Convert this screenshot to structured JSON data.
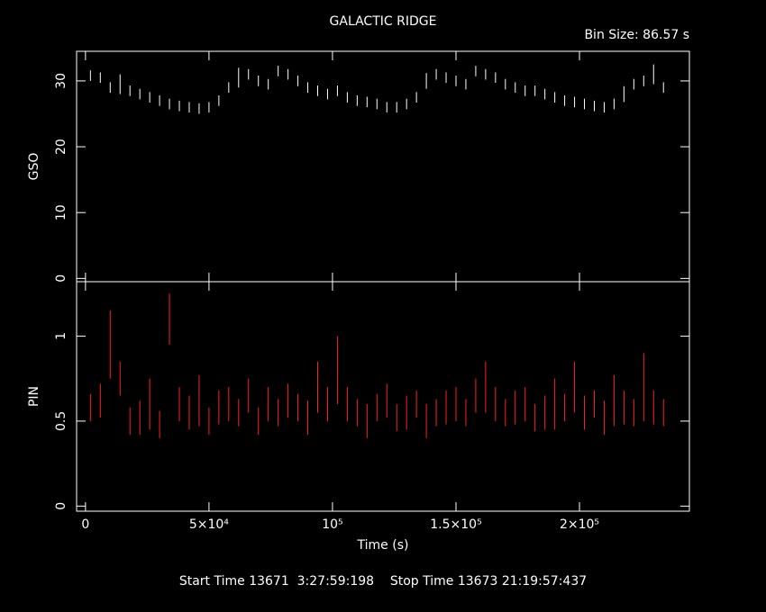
{
  "chart_data": {
    "type": "errorbar",
    "title": "GALACTIC RIDGE",
    "bin_size": "Bin Size: 86.57 s",
    "xlabel": "Time (s)",
    "footer": "Start Time 13671  3:27:59:198    Stop Time 13673 21:19:57:437",
    "xlim": [
      -3600,
      244500
    ],
    "xticks": [
      0,
      {
        "value": 50000,
        "label": "5×10⁴"
      },
      {
        "value": 100000,
        "label": "10⁵"
      },
      {
        "value": 150000,
        "label": "1.5×10⁵"
      },
      {
        "value": 200000,
        "label": "2×10⁵"
      }
    ],
    "x": [
      2000,
      6000,
      10000,
      14000,
      18000,
      22000,
      26000,
      30000,
      34000,
      38000,
      42000,
      46000,
      50000,
      54000,
      58000,
      62000,
      66000,
      70000,
      74000,
      78000,
      82000,
      86000,
      90000,
      94000,
      98000,
      102000,
      106000,
      110000,
      114000,
      118000,
      122000,
      126000,
      130000,
      134000,
      138000,
      142000,
      146000,
      150000,
      154000,
      158000,
      162000,
      166000,
      170000,
      174000,
      178000,
      182000,
      186000,
      190000,
      194000,
      198000,
      202000,
      206000,
      210000,
      214000,
      218000,
      222000,
      226000,
      230000,
      234000
    ],
    "panels": [
      {
        "ylabel": "GSO",
        "color": "#ffffff",
        "ylim": [
          -0.5,
          34.5
        ],
        "yticks": [
          0,
          10,
          20,
          30
        ],
        "values": [
          30.8,
          30.5,
          29,
          29.5,
          28.5,
          28,
          27.5,
          27,
          26.5,
          26.2,
          26,
          25.8,
          26,
          27,
          29,
          30.5,
          31,
          30,
          29.5,
          31.5,
          31,
          30,
          29,
          28.5,
          28,
          28.5,
          27.5,
          27,
          26.8,
          26.5,
          26,
          26,
          26.5,
          27.5,
          30,
          31,
          30.5,
          30,
          29.5,
          31.5,
          31,
          30.5,
          29.5,
          29,
          28.5,
          28.5,
          28,
          27.5,
          27,
          26.8,
          26.5,
          26.2,
          26,
          26.5,
          28,
          29.5,
          30,
          31,
          29
        ],
        "errors": [
          0.8,
          0.8,
          0.8,
          1.5,
          0.8,
          0.8,
          0.8,
          0.8,
          0.8,
          0.8,
          0.8,
          0.8,
          0.8,
          0.8,
          0.8,
          1.5,
          0.8,
          0.8,
          0.8,
          0.8,
          0.8,
          0.8,
          0.8,
          0.8,
          0.8,
          0.8,
          0.8,
          0.8,
          0.8,
          0.8,
          0.8,
          0.8,
          0.8,
          0.8,
          1.2,
          0.8,
          0.8,
          0.8,
          0.8,
          0.8,
          0.8,
          0.8,
          0.8,
          0.8,
          0.8,
          0.8,
          0.8,
          0.8,
          0.8,
          0.8,
          0.8,
          0.8,
          0.8,
          0.8,
          1.2,
          0.8,
          0.8,
          1.5,
          0.8
        ]
      },
      {
        "ylabel": "PIN",
        "color": "#ff2020",
        "ylim": [
          -0.03,
          1.32
        ],
        "yticks": [
          0,
          0.5,
          1
        ],
        "values": [
          0.58,
          0.62,
          0.95,
          0.75,
          0.5,
          0.52,
          0.6,
          0.48,
          1.1,
          0.6,
          0.55,
          0.62,
          0.5,
          0.58,
          0.6,
          0.55,
          0.65,
          0.5,
          0.6,
          0.55,
          0.62,
          0.58,
          0.52,
          0.7,
          0.6,
          0.8,
          0.6,
          0.55,
          0.5,
          0.58,
          0.62,
          0.52,
          0.55,
          0.6,
          0.5,
          0.55,
          0.58,
          0.6,
          0.55,
          0.65,
          0.7,
          0.6,
          0.55,
          0.58,
          0.6,
          0.52,
          0.55,
          0.6,
          0.58,
          0.7,
          0.55,
          0.6,
          0.52,
          0.62,
          0.58,
          0.55,
          0.7,
          0.58,
          0.55
        ],
        "errors": [
          0.08,
          0.1,
          0.2,
          0.1,
          0.08,
          0.1,
          0.15,
          0.08,
          0.15,
          0.1,
          0.1,
          0.15,
          0.08,
          0.1,
          0.1,
          0.08,
          0.1,
          0.08,
          0.1,
          0.08,
          0.1,
          0.08,
          0.1,
          0.15,
          0.1,
          0.2,
          0.1,
          0.08,
          0.1,
          0.08,
          0.1,
          0.08,
          0.1,
          0.08,
          0.1,
          0.08,
          0.1,
          0.1,
          0.08,
          0.1,
          0.15,
          0.1,
          0.08,
          0.1,
          0.1,
          0.08,
          0.1,
          0.15,
          0.08,
          0.15,
          0.1,
          0.08,
          0.1,
          0.15,
          0.1,
          0.08,
          0.2,
          0.1,
          0.08
        ]
      }
    ]
  }
}
